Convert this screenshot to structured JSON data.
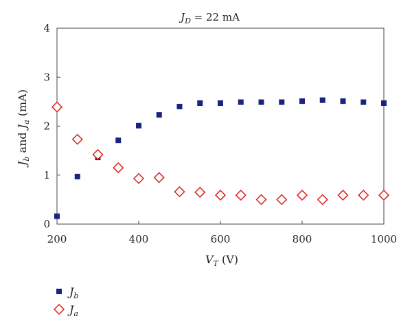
{
  "chart_data": {
    "type": "scatter",
    "title_parts": {
      "main": "J",
      "sub": "D",
      "rest": " = 22 mA"
    },
    "xlabel_parts": {
      "main": "V",
      "sub": "T",
      "rest": " (V)"
    },
    "ylabel_parts": [
      {
        "text": "J",
        "italic": true
      },
      {
        "text": "b",
        "italic": true,
        "sub": true
      },
      {
        "text": " and ",
        "italic": false
      },
      {
        "text": "J",
        "italic": true
      },
      {
        "text": "a",
        "italic": true,
        "sub": true
      },
      {
        "text": " (mA)",
        "italic": false
      }
    ],
    "xlim": [
      200,
      1000
    ],
    "ylim": [
      0,
      4
    ],
    "xticks": [
      200,
      400,
      600,
      800,
      1000
    ],
    "yticks": [
      0,
      1,
      2,
      3,
      4
    ],
    "grid": false,
    "legend_position": "bottom-left",
    "series": [
      {
        "name": "Jb",
        "label_main": "J",
        "label_sub": "b",
        "marker": "square",
        "color": "#1a237e",
        "x": [
          200,
          250,
          300,
          350,
          400,
          450,
          500,
          550,
          600,
          650,
          700,
          750,
          800,
          850,
          900,
          950,
          1000
        ],
        "y": [
          0.16,
          0.97,
          1.36,
          1.71,
          2.01,
          2.23,
          2.4,
          2.47,
          2.47,
          2.49,
          2.49,
          2.49,
          2.51,
          2.53,
          2.51,
          2.49,
          2.47
        ]
      },
      {
        "name": "Ja",
        "label_main": "J",
        "label_sub": "a",
        "marker": "diamond",
        "color": "#e0201b",
        "x": [
          200,
          250,
          300,
          350,
          400,
          450,
          500,
          550,
          600,
          650,
          700,
          750,
          800,
          850,
          900,
          950,
          1000
        ],
        "y": [
          2.39,
          1.73,
          1.42,
          1.15,
          0.93,
          0.95,
          0.66,
          0.65,
          0.59,
          0.59,
          0.5,
          0.5,
          0.59,
          0.5,
          0.59,
          0.59,
          0.59
        ]
      }
    ]
  }
}
